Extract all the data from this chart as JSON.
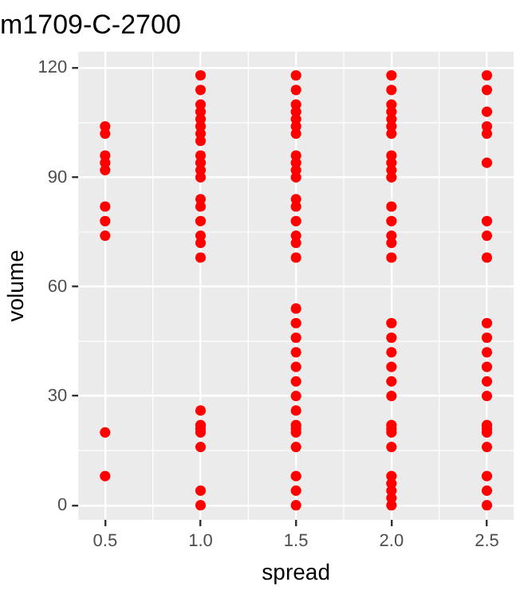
{
  "chart_data": {
    "type": "scatter",
    "title": "m1709-C-2700",
    "xlabel": "spread",
    "ylabel": "volume",
    "series": [
      {
        "color": "#ff0000",
        "x": [
          0.5,
          0.5,
          0.5,
          0.5,
          0.5,
          0.5,
          0.5,
          0.5,
          0.5,
          0.5,
          1,
          1,
          1,
          1,
          1,
          1,
          1,
          1,
          1,
          1,
          1,
          1,
          1,
          1,
          1,
          1,
          1,
          1,
          1,
          1,
          1,
          1,
          1,
          1,
          1,
          1.5,
          1.5,
          1.5,
          1.5,
          1.5,
          1.5,
          1.5,
          1.5,
          1.5,
          1.5,
          1.5,
          1.5,
          1.5,
          1.5,
          1.5,
          1.5,
          1.5,
          1.5,
          1.5,
          1.5,
          1.5,
          1.5,
          1.5,
          1.5,
          1.5,
          1.5,
          1.5,
          1.5,
          1.5,
          1.5,
          1.5,
          1.5,
          2,
          2,
          2,
          2,
          2,
          2,
          2,
          2,
          2,
          2,
          2,
          2,
          2,
          2,
          2,
          2,
          2,
          2,
          2,
          2,
          2,
          2,
          2,
          2,
          2,
          2,
          2,
          2,
          2,
          2,
          2,
          2.5,
          2.5,
          2.5,
          2.5,
          2.5,
          2.5,
          2.5,
          2.5,
          2.5,
          2.5,
          2.5,
          2.5,
          2.5,
          2.5,
          2.5,
          2.5,
          2.5,
          2.5,
          2.5,
          2.5,
          2.5,
          2.5
        ],
        "values": [
          104,
          102,
          96,
          94,
          92,
          82,
          78,
          74,
          20,
          8,
          118,
          114,
          110,
          108,
          106,
          104,
          102,
          100,
          96,
          94,
          92,
          90,
          84,
          82,
          78,
          74,
          72,
          68,
          26,
          22,
          20,
          16,
          4,
          0,
          21,
          118,
          114,
          110,
          108,
          106,
          104,
          102,
          96,
          94,
          92,
          90,
          84,
          82,
          78,
          74,
          72,
          68,
          54,
          50,
          46,
          42,
          38,
          34,
          30,
          26,
          22,
          20,
          16,
          8,
          4,
          0,
          21,
          118,
          114,
          110,
          108,
          106,
          104,
          102,
          96,
          94,
          92,
          90,
          82,
          78,
          74,
          72,
          68,
          50,
          46,
          42,
          38,
          34,
          30,
          22,
          21,
          20,
          16,
          8,
          6,
          4,
          2,
          0,
          118,
          114,
          108,
          104,
          102,
          94,
          78,
          74,
          68,
          50,
          46,
          42,
          38,
          34,
          30,
          22,
          20,
          16,
          8,
          4,
          0,
          21
        ]
      }
    ],
    "xlim": [
      0.36,
      2.64
    ],
    "ylim": [
      -4,
      124.5
    ],
    "xticks": [
      0.5,
      {
        "value": 1,
        "label": "1.0"
      },
      1.5,
      {
        "value": 2,
        "label": "2.0"
      },
      2.5
    ],
    "yticks": [
      0,
      30,
      60,
      90,
      120
    ],
    "grid": true,
    "legend": false,
    "marker": "circle"
  }
}
